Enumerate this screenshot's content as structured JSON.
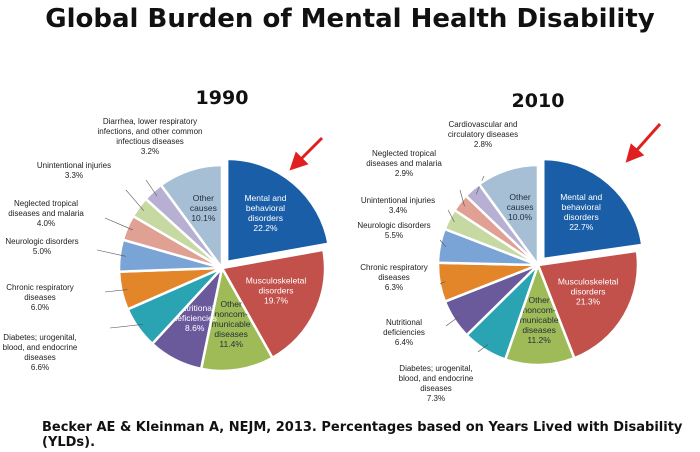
{
  "header": {
    "title": "Global Burden of Mental Health Disability"
  },
  "footer": {
    "citation": "Becker AE & Kleinman  A, NEJM, 2013. Percentages based on Years Lived with Disability (YLDs)."
  },
  "colors": {
    "mental": "#1a5ea8",
    "musculoskeletal": "#c2504b",
    "other_noncommunicable": "#9fbb57",
    "nutritional": "#6a5a9c",
    "diabetes": "#2aa3b3",
    "chronic_respiratory": "#e3862a",
    "neurologic": "#7aa3d6",
    "neglected_tropical": "#e0a194",
    "unintentional": "#c7d9a3",
    "diarrhea": "#b7b0d3",
    "cardiovascular": "#b7b0d3",
    "other_causes": "#a6bfd4",
    "arrow": "#e02020"
  },
  "chart_data": [
    {
      "type": "pie",
      "title": "1990",
      "slices": [
        {
          "key": "mental",
          "label": [
            "Mental and",
            "behavioral",
            "disorders",
            "22.2%"
          ],
          "value": 22.2,
          "color_key": "mental",
          "label_inside": true,
          "exploded": true
        },
        {
          "key": "musculoskeletal",
          "label": [
            "Musculoskeletal",
            "disorders",
            "19.7%"
          ],
          "value": 19.7,
          "color_key": "musculoskeletal",
          "label_inside": true
        },
        {
          "key": "other_noncommunicable",
          "label": [
            "Other",
            "noncom-",
            "municable",
            "diseases",
            "11.4%"
          ],
          "value": 11.4,
          "color_key": "other_noncommunicable",
          "label_inside": true
        },
        {
          "key": "nutritional",
          "label": [
            "Nutritional",
            "deficiencies",
            "8.6%"
          ],
          "value": 8.6,
          "color_key": "nutritional",
          "label_inside": true
        },
        {
          "key": "diabetes",
          "label": [
            "Diabetes; urogenital,",
            "blood, and endocrine",
            "diseases",
            "6.6%"
          ],
          "value": 6.6,
          "color_key": "diabetes",
          "label_inside": false
        },
        {
          "key": "chronic_respiratory",
          "label": [
            "Chronic respiratory",
            "diseases",
            "6.0%"
          ],
          "value": 6.0,
          "color_key": "chronic_respiratory",
          "label_inside": false
        },
        {
          "key": "neurologic",
          "label": [
            "Neurologic disorders",
            "5.0%"
          ],
          "value": 5.0,
          "color_key": "neurologic",
          "label_inside": false
        },
        {
          "key": "neglected_tropical",
          "label": [
            "Neglected tropical",
            "diseases and malaria",
            "4.0%"
          ],
          "value": 4.0,
          "color_key": "neglected_tropical",
          "label_inside": false
        },
        {
          "key": "unintentional",
          "label": [
            "Unintentional injuries",
            "3.3%"
          ],
          "value": 3.3,
          "color_key": "unintentional",
          "label_inside": false
        },
        {
          "key": "diarrhea",
          "label": [
            "Diarrhea, lower respiratory",
            "infections, and other common",
            "infectious diseases",
            "3.2%"
          ],
          "value": 3.2,
          "color_key": "diarrhea",
          "label_inside": false
        },
        {
          "key": "other_causes",
          "label": [
            "Other",
            "causes",
            "10.1%"
          ],
          "value": 10.1,
          "color_key": "other_causes",
          "label_inside": true
        }
      ]
    },
    {
      "type": "pie",
      "title": "2010",
      "slices": [
        {
          "key": "mental",
          "label": [
            "Mental and",
            "behavioral",
            "disorders",
            "22.7%"
          ],
          "value": 22.7,
          "color_key": "mental",
          "label_inside": true,
          "exploded": true
        },
        {
          "key": "musculoskeletal",
          "label": [
            "Musculoskeletal",
            "disorders",
            "21.3%"
          ],
          "value": 21.3,
          "color_key": "musculoskeletal",
          "label_inside": true
        },
        {
          "key": "other_noncommunicable",
          "label": [
            "Other",
            "noncom-",
            "municable",
            "diseases",
            "11.2%"
          ],
          "value": 11.2,
          "color_key": "other_noncommunicable",
          "label_inside": true
        },
        {
          "key": "diabetes",
          "label": [
            "Diabetes; urogenital,",
            "blood, and endocrine",
            "diseases",
            "7.3%"
          ],
          "value": 7.3,
          "color_key": "diabetes",
          "label_inside": false
        },
        {
          "key": "nutritional",
          "label": [
            "Nutritional",
            "deficiencies",
            "6.4%"
          ],
          "value": 6.4,
          "color_key": "nutritional",
          "label_inside": false
        },
        {
          "key": "chronic_respiratory",
          "label": [
            "Chronic respiratory",
            "diseases",
            "6.3%"
          ],
          "value": 6.3,
          "color_key": "chronic_respiratory",
          "label_inside": false
        },
        {
          "key": "neurologic",
          "label": [
            "Neurologic disorders",
            "5.5%"
          ],
          "value": 5.5,
          "color_key": "neurologic",
          "label_inside": false
        },
        {
          "key": "unintentional",
          "label": [
            "Unintentional injuries",
            "3.4%"
          ],
          "value": 3.4,
          "color_key": "unintentional",
          "label_inside": false
        },
        {
          "key": "neglected_tropical",
          "label": [
            "Neglected tropical",
            "diseases and malaria",
            "2.9%"
          ],
          "value": 2.9,
          "color_key": "neglected_tropical",
          "label_inside": false
        },
        {
          "key": "cardiovascular",
          "label": [
            "Cardiovascular and",
            "circulatory diseases",
            "2.8%"
          ],
          "value": 2.8,
          "color_key": "cardiovascular",
          "label_inside": false
        },
        {
          "key": "other_causes",
          "label": [
            "Other",
            "causes",
            "10.0%"
          ],
          "value": 10.0,
          "color_key": "other_causes",
          "label_inside": true
        }
      ]
    }
  ]
}
